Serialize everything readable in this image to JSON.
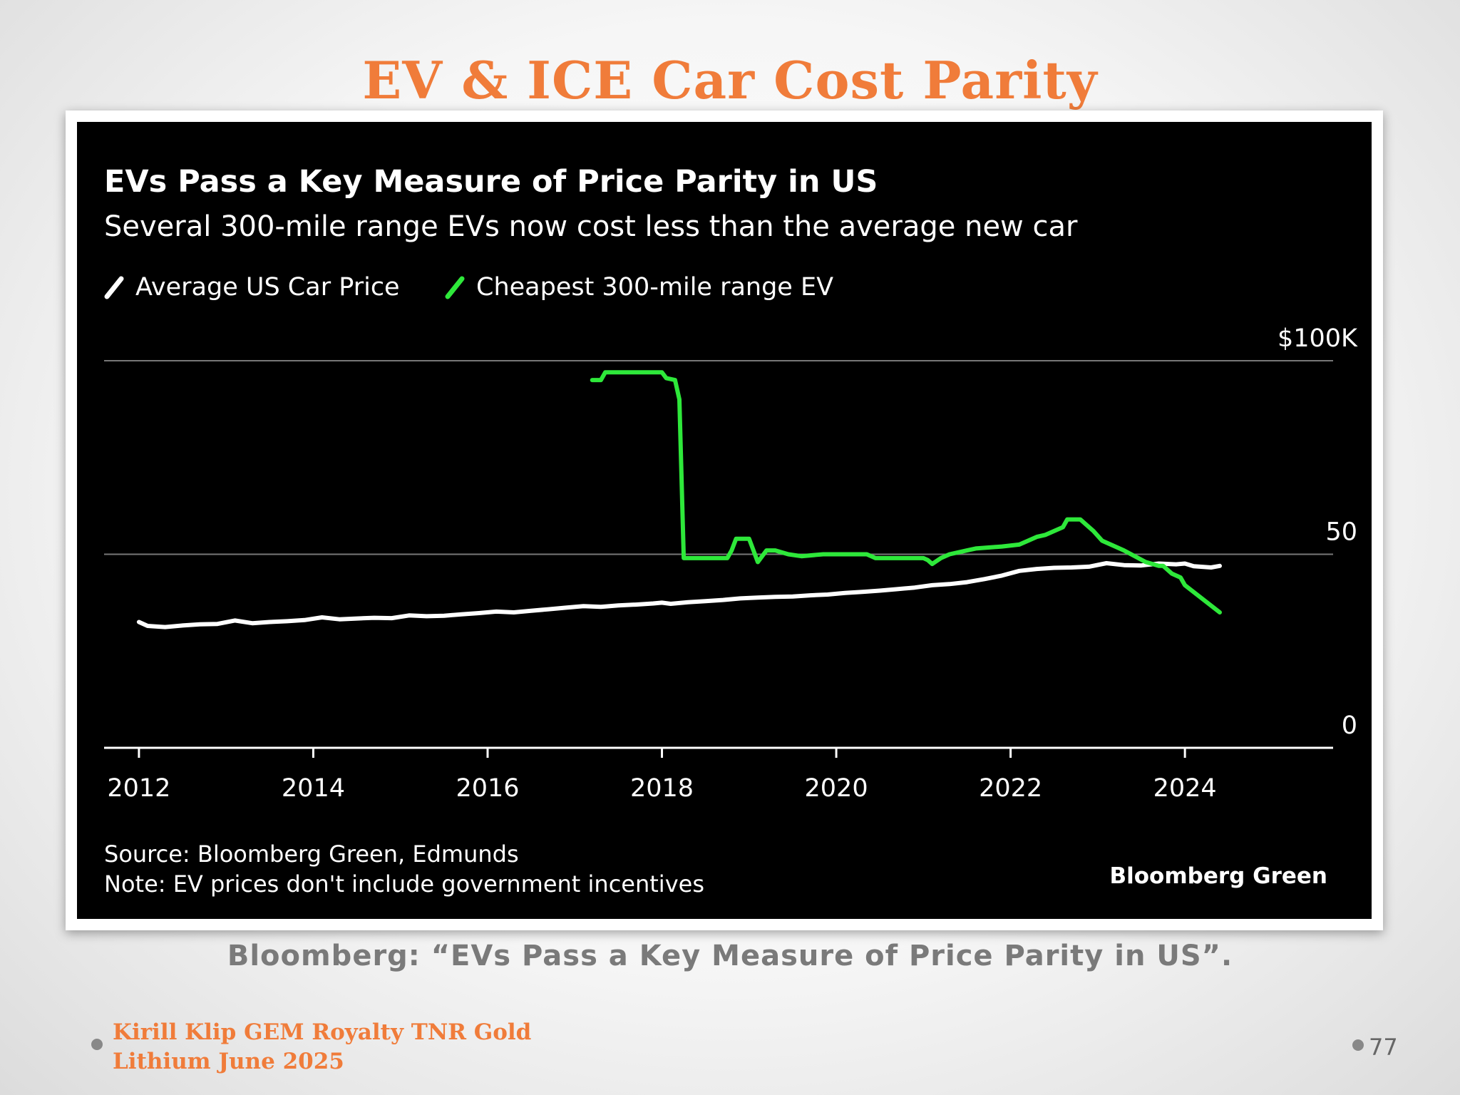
{
  "slide": {
    "title": "EV & ICE Car Cost Parity",
    "caption": "Bloomberg: “EVs Pass a Key Measure of Price Parity in US”.",
    "footer_line1": "Kirill Klip GEM Royalty TNR Gold",
    "footer_line2": "Lithium June 2025",
    "page_number": "77"
  },
  "chart_data": {
    "type": "line",
    "title": "EVs Pass a Key Measure of Price Parity in US",
    "subtitle": "Several 300-mile range EVs now cost less than the average new car",
    "source": "Source: Bloomberg Green, Edmunds",
    "note": "Note: EV prices don't include government incentives",
    "branding": "Bloomberg Green",
    "xlim": [
      2011.6,
      2025.7
    ],
    "ylim": [
      0,
      100
    ],
    "x_ticks": [
      2012,
      2014,
      2016,
      2018,
      2020,
      2022,
      2024
    ],
    "x_tick_labels": [
      "2012",
      "2014",
      "2016",
      "2018",
      "2020",
      "2022",
      "2024"
    ],
    "y_ticks": [
      0,
      50,
      100
    ],
    "y_tick_labels": [
      "0",
      "50",
      "$100K"
    ],
    "grid": "horizontal",
    "legend_position": "top-left",
    "colors": {
      "background": "#000000",
      "average": "#ffffff",
      "ev": "#2ee83a",
      "grid": "#777777"
    },
    "series": [
      {
        "name": "Average US Car Price",
        "color": "#ffffff",
        "x": [
          2012.0,
          2012.1,
          2012.3,
          2012.5,
          2012.7,
          2012.9,
          2013.1,
          2013.3,
          2013.5,
          2013.7,
          2013.9,
          2014.1,
          2014.3,
          2014.5,
          2014.7,
          2014.9,
          2015.1,
          2015.3,
          2015.5,
          2015.7,
          2015.9,
          2016.1,
          2016.3,
          2016.5,
          2016.7,
          2016.9,
          2017.1,
          2017.3,
          2017.5,
          2017.7,
          2017.9,
          2018.0,
          2018.1,
          2018.3,
          2018.5,
          2018.7,
          2018.9,
          2019.1,
          2019.3,
          2019.5,
          2019.7,
          2019.9,
          2020.1,
          2020.3,
          2020.5,
          2020.7,
          2020.9,
          2021.1,
          2021.3,
          2021.5,
          2021.7,
          2021.9,
          2022.1,
          2022.3,
          2022.5,
          2022.7,
          2022.9,
          2023.1,
          2023.3,
          2023.5,
          2023.7,
          2023.9,
          2024.0,
          2024.1,
          2024.3,
          2024.4
        ],
        "values": [
          32.5,
          31.5,
          31.2,
          31.6,
          31.9,
          32.0,
          32.9,
          32.2,
          32.5,
          32.7,
          33.0,
          33.7,
          33.2,
          33.4,
          33.6,
          33.5,
          34.2,
          34.0,
          34.1,
          34.5,
          34.8,
          35.2,
          35.0,
          35.4,
          35.8,
          36.2,
          36.6,
          36.4,
          36.8,
          37.0,
          37.3,
          37.5,
          37.2,
          37.6,
          37.9,
          38.2,
          38.6,
          38.8,
          39.0,
          39.1,
          39.4,
          39.6,
          40.0,
          40.3,
          40.6,
          41.0,
          41.4,
          42.0,
          42.3,
          42.8,
          43.6,
          44.5,
          45.7,
          46.2,
          46.5,
          46.6,
          46.8,
          47.7,
          47.2,
          47.1,
          47.6,
          47.4,
          47.6,
          46.9,
          46.6,
          47.0
        ]
      },
      {
        "name": "Cheapest 300-mile range EV",
        "color": "#2ee83a",
        "x": [
          2017.2,
          2017.3,
          2017.35,
          2017.5,
          2017.8,
          2018.0,
          2018.05,
          2018.15,
          2018.2,
          2018.25,
          2018.75,
          2018.8,
          2018.85,
          2019.0,
          2019.05,
          2019.1,
          2019.2,
          2019.3,
          2019.45,
          2019.6,
          2019.85,
          2020.0,
          2020.35,
          2020.45,
          2021.0,
          2021.05,
          2021.1,
          2021.2,
          2021.3,
          2021.5,
          2021.6,
          2021.9,
          2022.1,
          2022.2,
          2022.3,
          2022.4,
          2022.5,
          2022.6,
          2022.65,
          2022.8,
          2022.95,
          2023.05,
          2023.2,
          2023.3,
          2023.55,
          2023.7,
          2023.75,
          2023.85,
          2023.95,
          2024.0,
          2024.4
        ],
        "values": [
          95,
          95,
          97,
          97,
          97,
          97,
          95.5,
          95,
          90,
          49,
          49,
          51,
          54,
          54,
          51,
          48,
          51,
          51,
          50,
          49.5,
          50,
          50,
          50,
          49,
          49,
          48.5,
          47.5,
          49,
          50,
          51,
          51.5,
          52,
          52.5,
          53.5,
          54.5,
          55,
          56,
          57,
          59,
          59,
          56,
          53.5,
          52,
          51,
          48,
          47,
          47,
          45,
          44,
          42,
          35
        ]
      }
    ]
  }
}
